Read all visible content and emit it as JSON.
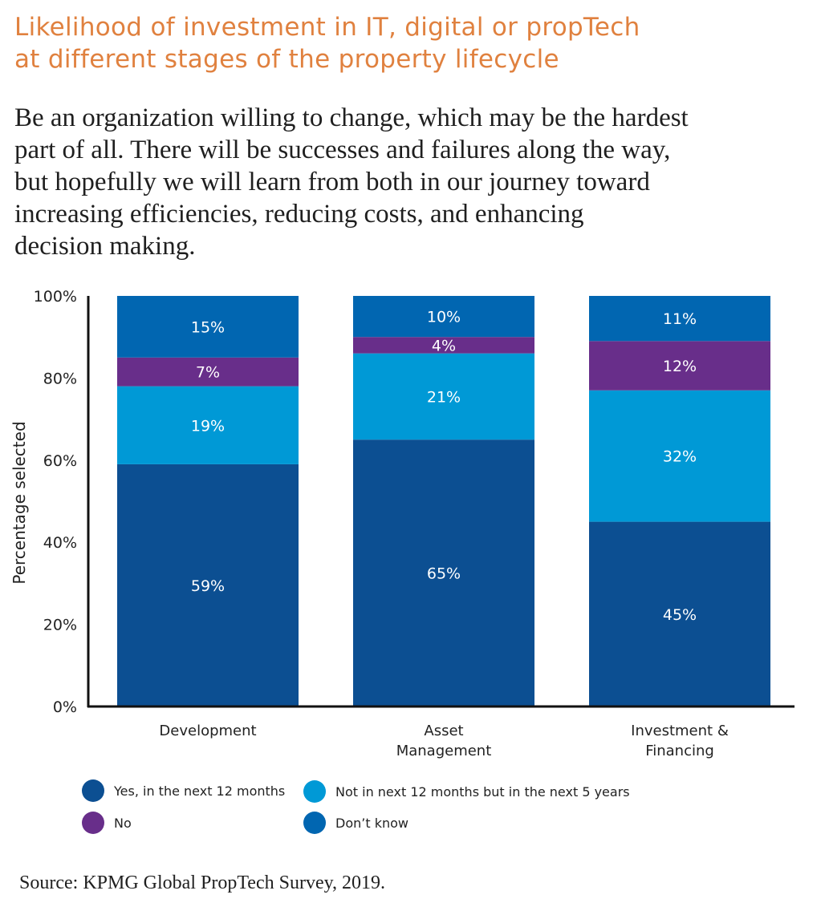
{
  "title_lines": [
    "Likelihood of investment in IT, digital or propTech",
    "at different stages of the property lifecycle"
  ],
  "quote_lines": [
    "Be an organization willing to change, which may be the hardest",
    "part of all. There will be successes and failures along the way,",
    "but hopefully we will learn from both in our journey toward",
    "increasing efficiencies, reducing costs, and enhancing",
    "decision making."
  ],
  "source": "Source: KPMG Global PropTech Survey, 2019.",
  "chart_data": {
    "type": "bar",
    "stacked": true,
    "categories": [
      [
        "Development"
      ],
      [
        "Asset",
        "Management"
      ],
      [
        "Investment &",
        "Financing"
      ]
    ],
    "ylabel": "Percentage selected",
    "ylim": [
      0,
      100
    ],
    "yticks": [
      "0%",
      "20%",
      "40%",
      "60%",
      "80%",
      "100%"
    ],
    "series": [
      {
        "name": "Yes, in the next 12 months",
        "color": "#0c4f92",
        "values": [
          59,
          65,
          45
        ],
        "labels": [
          "59%",
          "65%",
          "45%"
        ]
      },
      {
        "name": "Not in next 12 months but in the next 5 years",
        "color": "#0099d6",
        "values": [
          19,
          21,
          32
        ],
        "labels": [
          "19%",
          "21%",
          "32%"
        ]
      },
      {
        "name": "No",
        "color": "#682e8a",
        "values": [
          7,
          4,
          12
        ],
        "labels": [
          "7%",
          "4%",
          "12%"
        ]
      },
      {
        "name": "Don’t know",
        "color": "#0166b1",
        "values": [
          15,
          10,
          11
        ],
        "labels": [
          "15%",
          "10%",
          "11%"
        ]
      }
    ],
    "legend": {
      "position": "bottom",
      "order": [
        {
          "label": "Yes, in the next 12 months",
          "color": "#0c4f92"
        },
        {
          "label": "Not in next 12 months but in the next 5 years",
          "color": "#0099d6"
        },
        {
          "label": "No",
          "color": "#682e8a"
        },
        {
          "label": "Don’t know",
          "color": "#0166b1"
        }
      ]
    },
    "grid": false
  }
}
